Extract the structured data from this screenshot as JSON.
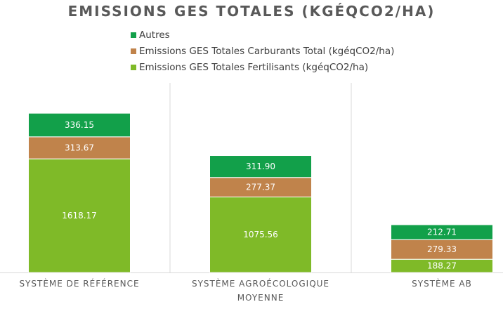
{
  "chart_data": {
    "type": "bar",
    "stacked": true,
    "title": "EMISSIONS GES TOTALES (KGÉQCO2/HA)",
    "categories": [
      "SYSTÈME DE RÉFÉRENCE",
      "SYSTÈME AGROÉCOLOGIQUE MOYENNE",
      "SYSTÈME AB"
    ],
    "category_lines": [
      [
        "SYSTÈME DE RÉFÉRENCE"
      ],
      [
        "SYSTÈME AGROÉCOLOGIQUE",
        "MOYENNE"
      ],
      [
        "SYSTÈME AB"
      ]
    ],
    "series": [
      {
        "name": "Emissions GES Totales Fertilisants (kgéqCO2/ha)",
        "color": "#7fba28",
        "values": [
          1618.17,
          1075.56,
          188.27
        ],
        "labels": [
          "1618.17",
          "1075.56",
          "188.27"
        ]
      },
      {
        "name": "Emissions GES Totales Carburants Total (kgéqCO2/ha)",
        "color": "#c0834b",
        "values": [
          313.67,
          277.37,
          279.33
        ],
        "labels": [
          "313.67",
          "277.37",
          "279.33"
        ]
      },
      {
        "name": "Autres",
        "color": "#12a04a",
        "values": [
          336.15,
          311.9,
          212.71
        ],
        "labels": [
          "336.15",
          "311.90",
          "212.71"
        ]
      }
    ],
    "legend_order": [
      2,
      1,
      0
    ],
    "legend_position": "top",
    "ylim": [
      0,
      2700
    ],
    "grid": false,
    "divider_color": "#d9d9d9"
  }
}
